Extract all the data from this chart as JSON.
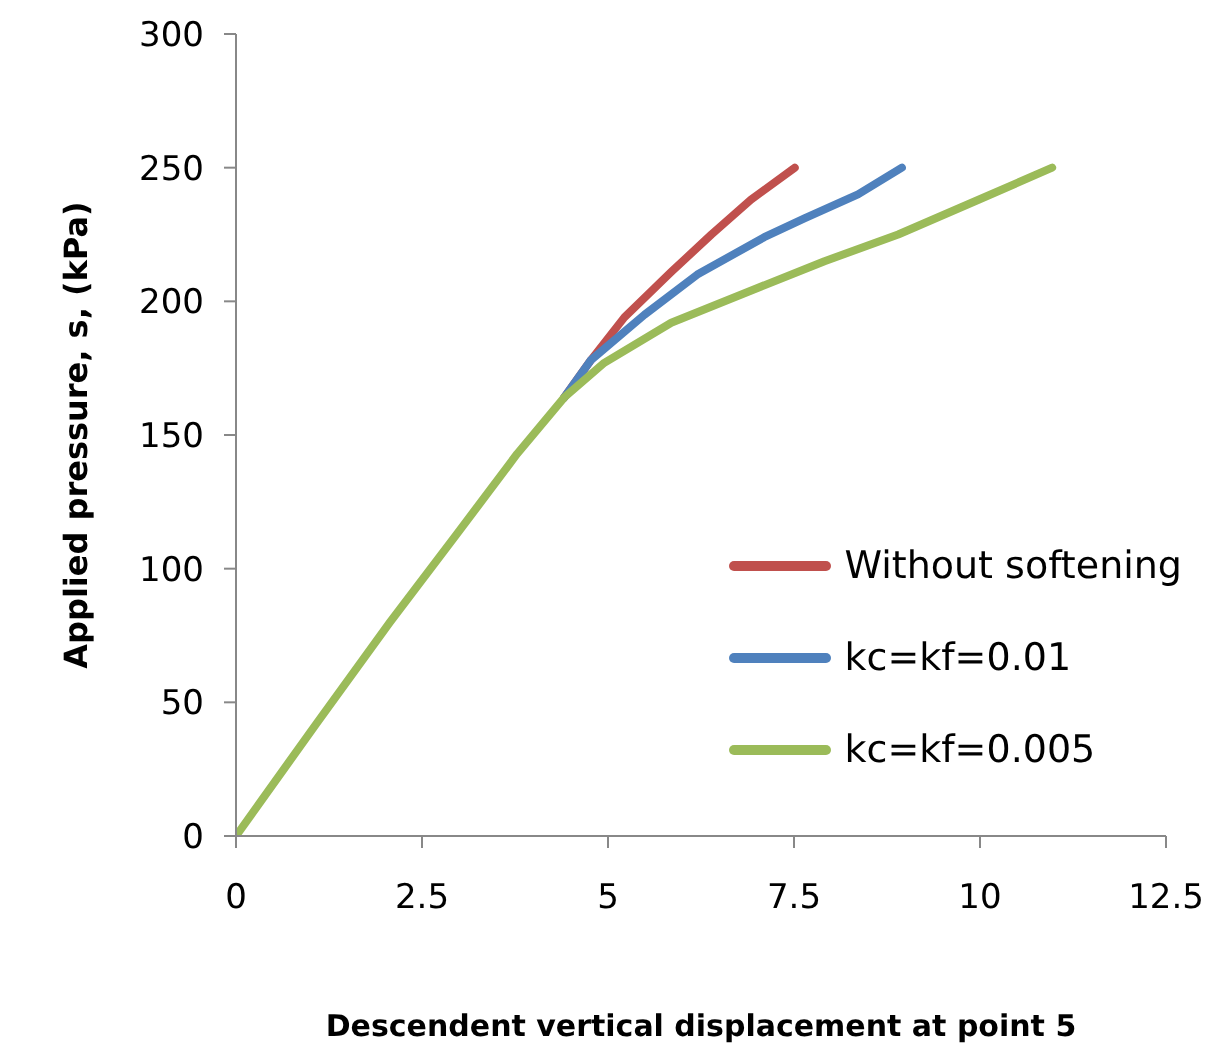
{
  "chart_data": {
    "type": "line",
    "xlabel": "Descendent vertical displacement at point 5",
    "ylabel": "Applied pressure, s, (kPa)",
    "xlim": [
      0,
      12.5
    ],
    "xticks": [
      0,
      2.5,
      5,
      7.5,
      10,
      12.5
    ],
    "ylim": [
      0,
      300
    ],
    "yticks": [
      0,
      50,
      100,
      150,
      200,
      250,
      300
    ],
    "grid": false,
    "legend": "bottom right",
    "marker": "none",
    "line_style": "solid",
    "series": [
      {
        "name": "Without softening",
        "color": "#c0504d",
        "x": [
          4.41,
          4.77,
          5.22,
          5.85,
          6.39,
          6.92,
          7.51
        ],
        "values": [
          164,
          178,
          194,
          211,
          225,
          238,
          250
        ]
      },
      {
        "name": "kc=kf=0.01",
        "color": "#4f81bd",
        "x": [
          4.41,
          4.77,
          5.49,
          6.2,
          7.1,
          7.64,
          8.36,
          8.95
        ],
        "values": [
          164,
          178,
          195,
          210,
          224,
          231,
          240,
          250
        ]
      },
      {
        "name": "kc=kf=0.005",
        "color": "#9bbb59",
        "x": [
          0,
          1.08,
          2.07,
          2.97,
          3.78,
          4.41,
          4.95,
          5.85,
          7.01,
          7.91,
          8.9,
          9.98,
          10.97
        ],
        "values": [
          0,
          42,
          80,
          113,
          143,
          164,
          177,
          192,
          205,
          215,
          225,
          238,
          250
        ]
      }
    ]
  }
}
